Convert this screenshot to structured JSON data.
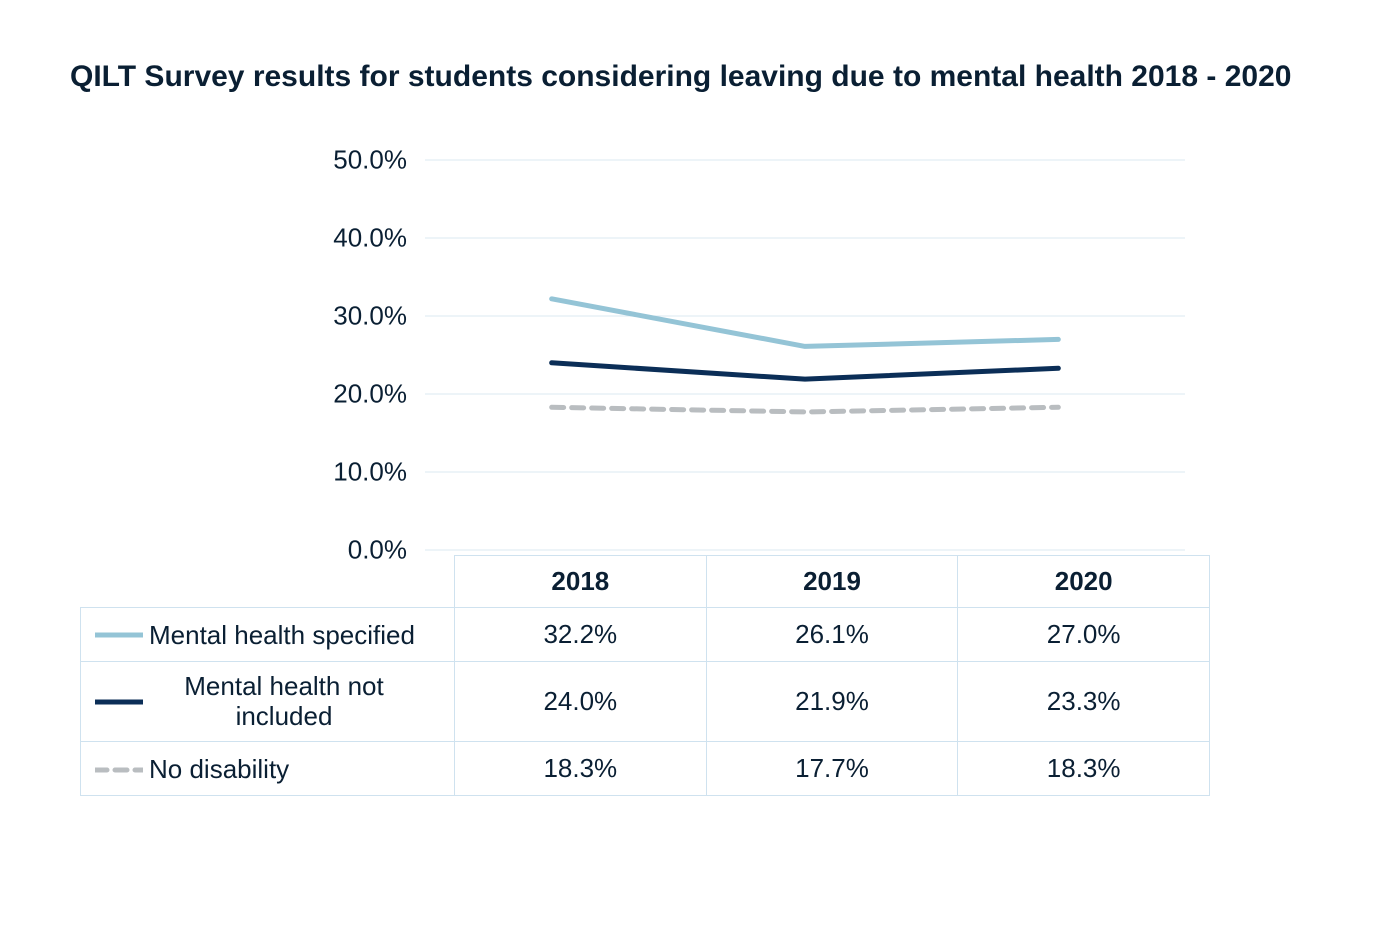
{
  "title": "QILT Survey results for students considering leaving due to mental health 2018 - 2020",
  "chart": {
    "type": "line",
    "background_color": "#ffffff",
    "grid_color": "#dbe9f2",
    "grid_line_width": 1,
    "ylim": [
      0,
      50
    ],
    "yticks": [
      0.0,
      10.0,
      20.0,
      30.0,
      40.0,
      50.0
    ],
    "ytick_labels": [
      "0.0%",
      "10.0%",
      "20.0%",
      "30.0%",
      "40.0%",
      "50.0%"
    ],
    "ytick_fontsize": 26,
    "categories": [
      "2018",
      "2019",
      "2020"
    ],
    "line_width": 5,
    "series": [
      {
        "id": "mh_specified",
        "label": "Mental health specified",
        "values": [
          32.2,
          26.1,
          27.0
        ],
        "display_values": [
          "32.2%",
          "26.1%",
          "27.0%"
        ],
        "color": "#94c4d6",
        "dash": "solid"
      },
      {
        "id": "mh_not_included",
        "label": "Mental health not included",
        "values": [
          24.0,
          21.9,
          23.3
        ],
        "display_values": [
          "24.0%",
          "21.9%",
          "23.3%"
        ],
        "color": "#0b2e57",
        "dash": "solid"
      },
      {
        "id": "no_disability",
        "label": "No disability",
        "values": [
          18.3,
          17.7,
          18.3
        ],
        "display_values": [
          "18.3%",
          "17.7%",
          "18.3%"
        ],
        "color": "#b9bdc0",
        "dash": "dashed",
        "dash_pattern": "12 8"
      }
    ]
  },
  "table": {
    "border_color": "#cfe2ef",
    "cell_fontsize": 26,
    "legend_swatch_width": 48,
    "legend_line_width": 5
  }
}
